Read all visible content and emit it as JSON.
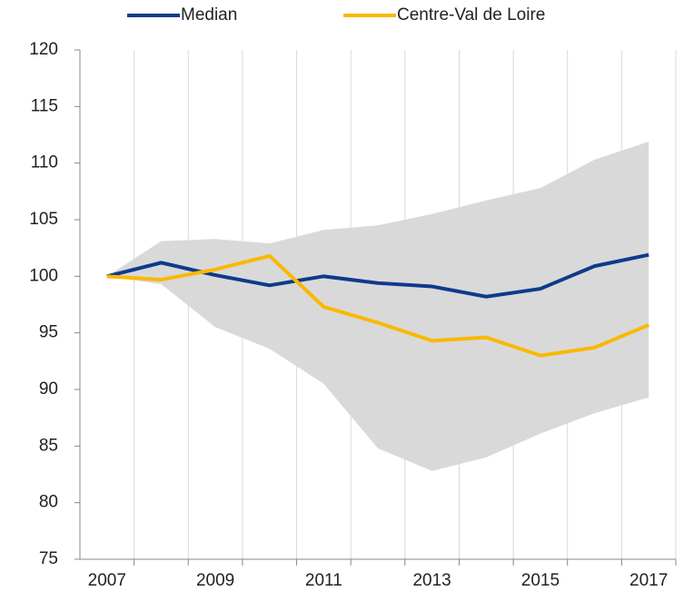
{
  "chart_data": {
    "type": "line",
    "categories": [
      "2007",
      null,
      "2009",
      null,
      "2011",
      null,
      "2013",
      null,
      "2015",
      null,
      "2017"
    ],
    "series": [
      {
        "name": "Median",
        "color": "#0e3a8c",
        "values": [
          100,
          101.2,
          100.1,
          99.2,
          100,
          99.4,
          99.1,
          98.2,
          98.9,
          100.9,
          101.9
        ]
      },
      {
        "name": "Centre-Val de Loire",
        "color": "#fbb800",
        "values": [
          100,
          99.7,
          100.6,
          101.8,
          97.3,
          95.9,
          94.3,
          94.6,
          93.0,
          93.7,
          95.7
        ]
      }
    ],
    "band": {
      "color": "#d9d9d9",
      "upper": [
        100,
        103.1,
        103.3,
        102.9,
        104.1,
        104.5,
        105.5,
        106.7,
        107.8,
        110.3,
        111.9
      ],
      "lower": [
        100,
        99.3,
        95.5,
        93.6,
        90.5,
        84.8,
        82.8,
        84.0,
        86.1,
        87.9,
        89.3
      ]
    },
    "ylim": [
      75,
      120
    ],
    "yticks": [
      75,
      80,
      85,
      90,
      95,
      100,
      105,
      110,
      115,
      120
    ],
    "grid": true
  }
}
